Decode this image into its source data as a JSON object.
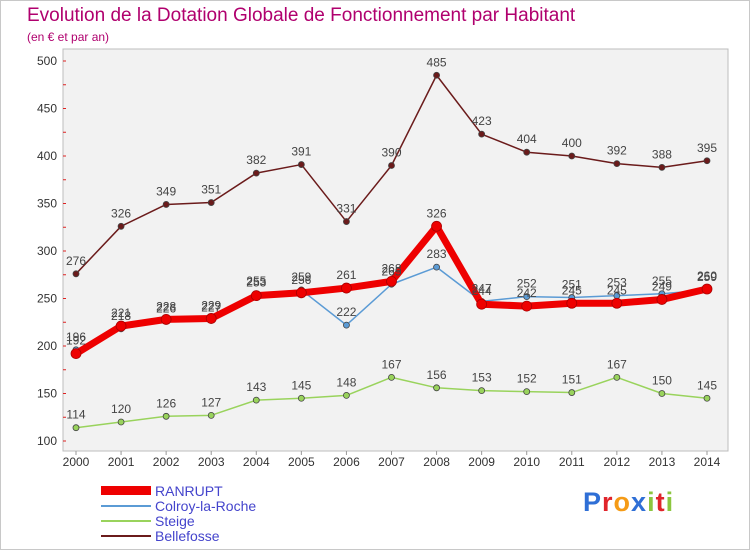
{
  "chart_data": {
    "type": "line",
    "title": "Evolution de la Dotation Globale de Fonctionnement par Habitant",
    "subtitle": "(en € et par an)",
    "xlabel": "",
    "ylabel": "",
    "ylim": [
      100,
      500
    ],
    "yticks": [
      100,
      150,
      200,
      250,
      300,
      350,
      400,
      450,
      500
    ],
    "categories": [
      "2000",
      "2001",
      "2002",
      "2003",
      "2004",
      "2005",
      "2006",
      "2007",
      "2008",
      "2009",
      "2010",
      "2011",
      "2012",
      "2013",
      "2014"
    ],
    "series": [
      {
        "name": "Bellefosse",
        "color": "#6b1b1b",
        "values": [
          276,
          326,
          349,
          351,
          382,
          391,
          331,
          390,
          485,
          423,
          404,
          400,
          392,
          388,
          395
        ],
        "labels": [
          "276",
          "326",
          "349",
          "351",
          "382",
          "391",
          "331",
          "390",
          "485",
          "423",
          "404",
          "400",
          "392",
          "388",
          "395"
        ]
      },
      {
        "name": "Steige",
        "color": "#99d35c",
        "values": [
          114,
          120,
          126,
          127,
          143,
          145,
          148,
          167,
          156,
          153,
          152,
          151,
          167,
          150,
          145
        ],
        "labels": [
          "114",
          "120",
          "126",
          "127",
          "143",
          "145",
          "148",
          "167",
          "156",
          "153",
          "152",
          "151",
          "167",
          "150",
          "145"
        ]
      },
      {
        "name": "Colroy-la-Roche",
        "color": "#5b9bd5",
        "values": [
          196,
          218,
          226,
          227,
          255,
          259,
          222,
          265,
          283,
          247,
          252,
          251,
          253,
          255,
          259
        ],
        "labels": [
          "196",
          "218",
          "226",
          "227",
          "255",
          "259",
          "222",
          "265",
          "283",
          "247",
          "252",
          "251",
          "253",
          "255",
          "259"
        ]
      },
      {
        "name": "RANRUPT",
        "color": "#ee0000",
        "values": [
          192,
          221,
          228,
          229,
          253,
          256,
          261,
          268,
          326,
          244,
          242,
          245,
          245,
          249,
          260
        ],
        "labels": [
          "192",
          "221",
          "228",
          "229",
          "253",
          "256",
          "261",
          "268",
          "326",
          "244",
          "242",
          "245",
          "245",
          "249",
          "260"
        ]
      }
    ],
    "legend": [
      {
        "name": "RANRUPT",
        "color": "#ee0000"
      },
      {
        "name": "Colroy-la-Roche",
        "color": "#5b9bd5"
      },
      {
        "name": "Steige",
        "color": "#99d35c"
      },
      {
        "name": "Bellefosse",
        "color": "#6b1b1b"
      }
    ],
    "grid": false,
    "legend_position": "bottom-left"
  },
  "logo": {
    "letters": [
      "P",
      "r",
      "o",
      "x",
      "i",
      "t",
      "i"
    ],
    "colors": [
      "#2f6fd6",
      "#e0242b",
      "#f59b16",
      "#2f6fd6",
      "#8cc63f",
      "#e0242b",
      "#8cc63f"
    ]
  }
}
